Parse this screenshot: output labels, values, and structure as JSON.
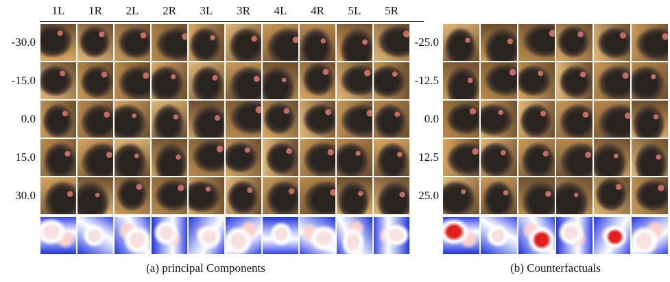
{
  "panel_a": {
    "columns": [
      "1L",
      "1R",
      "2L",
      "2R",
      "3L",
      "3R",
      "4L",
      "4R",
      "5L",
      "5R"
    ],
    "rows": [
      "-30.0",
      "-15.0",
      "0.0",
      "15.0",
      "30.0"
    ],
    "caption": "(a) principal Components"
  },
  "panel_b": {
    "rows": [
      "-25.0",
      "-12.5",
      "0.0",
      "12.5",
      "25.0"
    ],
    "caption": "(b) Counterfactuals"
  }
}
